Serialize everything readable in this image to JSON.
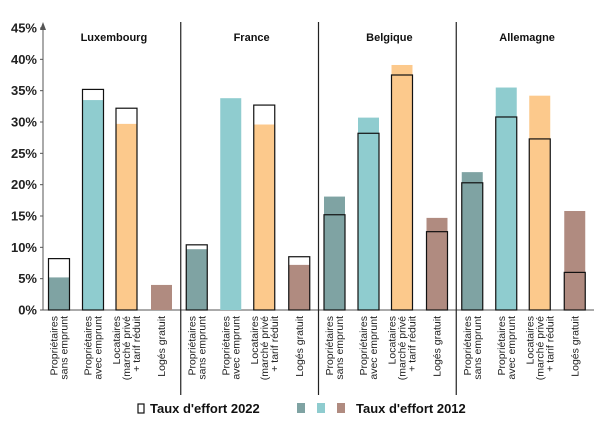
{
  "chart_data": {
    "type": "bar",
    "ylim": [
      0,
      45
    ],
    "yticks": [
      "0%",
      "5%",
      "10%",
      "15%",
      "20%",
      "25%",
      "30%",
      "35%",
      "40%",
      "45%"
    ],
    "groups": [
      "Luxembourg",
      "France",
      "Belgique",
      "Allemagne"
    ],
    "categories": [
      [
        "Propriétaires",
        "sans emprunt"
      ],
      [
        "Propriétaires",
        "avec emprunt"
      ],
      [
        "Locataires",
        "(marché privé",
        "+ tarif réduit"
      ],
      [
        "Logés gratuit"
      ]
    ],
    "category_colors": [
      "#7fa3a3",
      "#8fcccf",
      "#fcc98c",
      "#b08b80"
    ],
    "series": [
      {
        "name": "Taux d'effort 2022",
        "values": [
          [
            8.2,
            35.2,
            32.2,
            null
          ],
          [
            10.4,
            null,
            32.7,
            8.5
          ],
          [
            15.2,
            28.2,
            37.5,
            12.5
          ],
          [
            20.3,
            30.8,
            27.3,
            6.0
          ]
        ]
      },
      {
        "name": "Taux d'effort 2012",
        "values": [
          [
            5.2,
            33.5,
            29.7,
            4.0
          ],
          [
            9.7,
            33.8,
            29.6,
            7.2
          ],
          [
            18.1,
            30.7,
            39.1,
            14.7
          ],
          [
            22.0,
            35.5,
            34.2,
            15.8
          ]
        ]
      }
    ],
    "legend": {
      "label_2022": "Taux d'effort 2022",
      "label_2012": "Taux d'effort 2012"
    }
  }
}
